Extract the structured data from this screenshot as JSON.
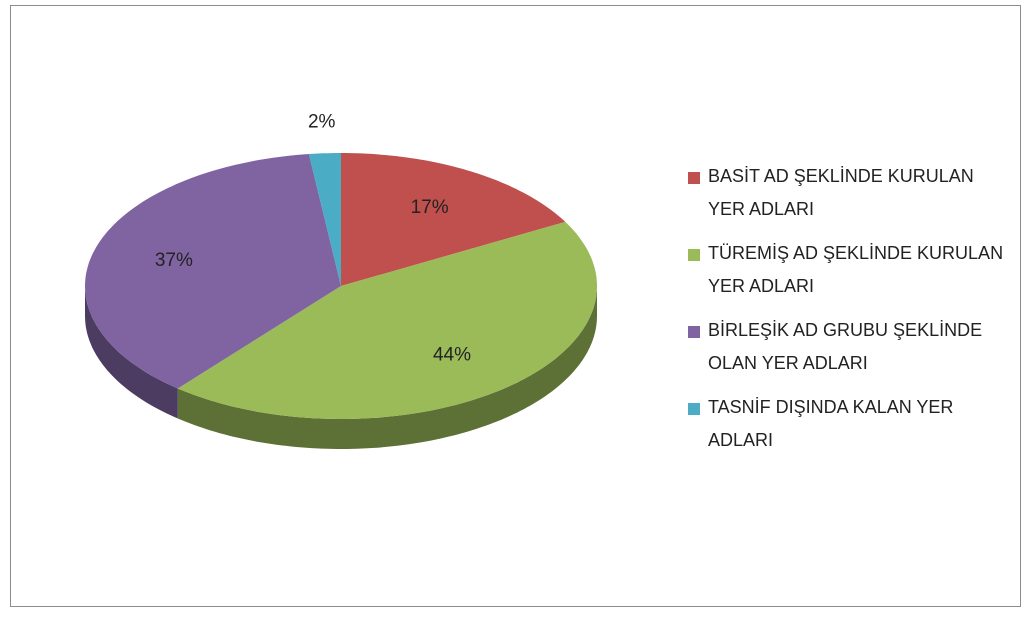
{
  "chart_data": {
    "type": "pie3d",
    "categories": [
      "BASİT AD ŞEKLİNDE KURULAN YER ADLARI",
      "TÜREMİŞ AD ŞEKLİNDE KURULAN YER ADLARI",
      "BİRLEŞİK AD GRUBU ŞEKLİNDE OLAN YER ADLARI",
      "TASNİF DIŞINDA KALAN YER ADLARI"
    ],
    "values": [
      17,
      44,
      37,
      2
    ],
    "value_labels": [
      "17%",
      "44%",
      "37%",
      "2%"
    ],
    "colors": [
      "#c0504d",
      "#9bbb59",
      "#8064a2",
      "#4bacc6"
    ],
    "legend": "right"
  }
}
